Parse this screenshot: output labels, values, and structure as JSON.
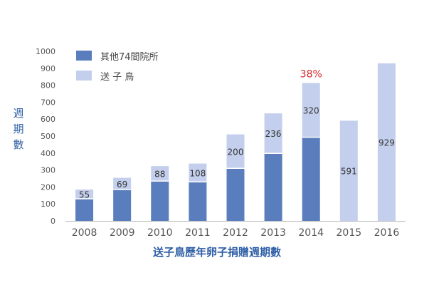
{
  "chart_data": {
    "type": "bar",
    "stacked": true,
    "categories": [
      "2008",
      "2009",
      "2010",
      "2011",
      "2012",
      "2013",
      "2014",
      "2015",
      "2016"
    ],
    "series": [
      {
        "name": "其他74間院所",
        "color": "#5a7dbd",
        "values": [
          130,
          185,
          235,
          230,
          310,
          398,
          493,
          0,
          0
        ]
      },
      {
        "name": "送 子 鳥",
        "color": "#c3cfec",
        "values": [
          55,
          69,
          88,
          108,
          200,
          236,
          320,
          591,
          929
        ]
      }
    ],
    "data_labels": [
      "55",
      "69",
      "88",
      "108",
      "200",
      "236",
      "320",
      "591",
      "929"
    ],
    "annotation": {
      "text": "38%",
      "category": "2014",
      "color": "#d42a2a"
    },
    "yticks": [
      "0",
      "100",
      "200",
      "300",
      "400",
      "500",
      "600",
      "700",
      "800",
      "900",
      "1000"
    ],
    "ylim": [
      0,
      1000
    ],
    "ylabel": "週期數",
    "xlabel": "送子鳥歷年卵子捐贈週期數",
    "legend_position": "top-left",
    "grid": false
  }
}
